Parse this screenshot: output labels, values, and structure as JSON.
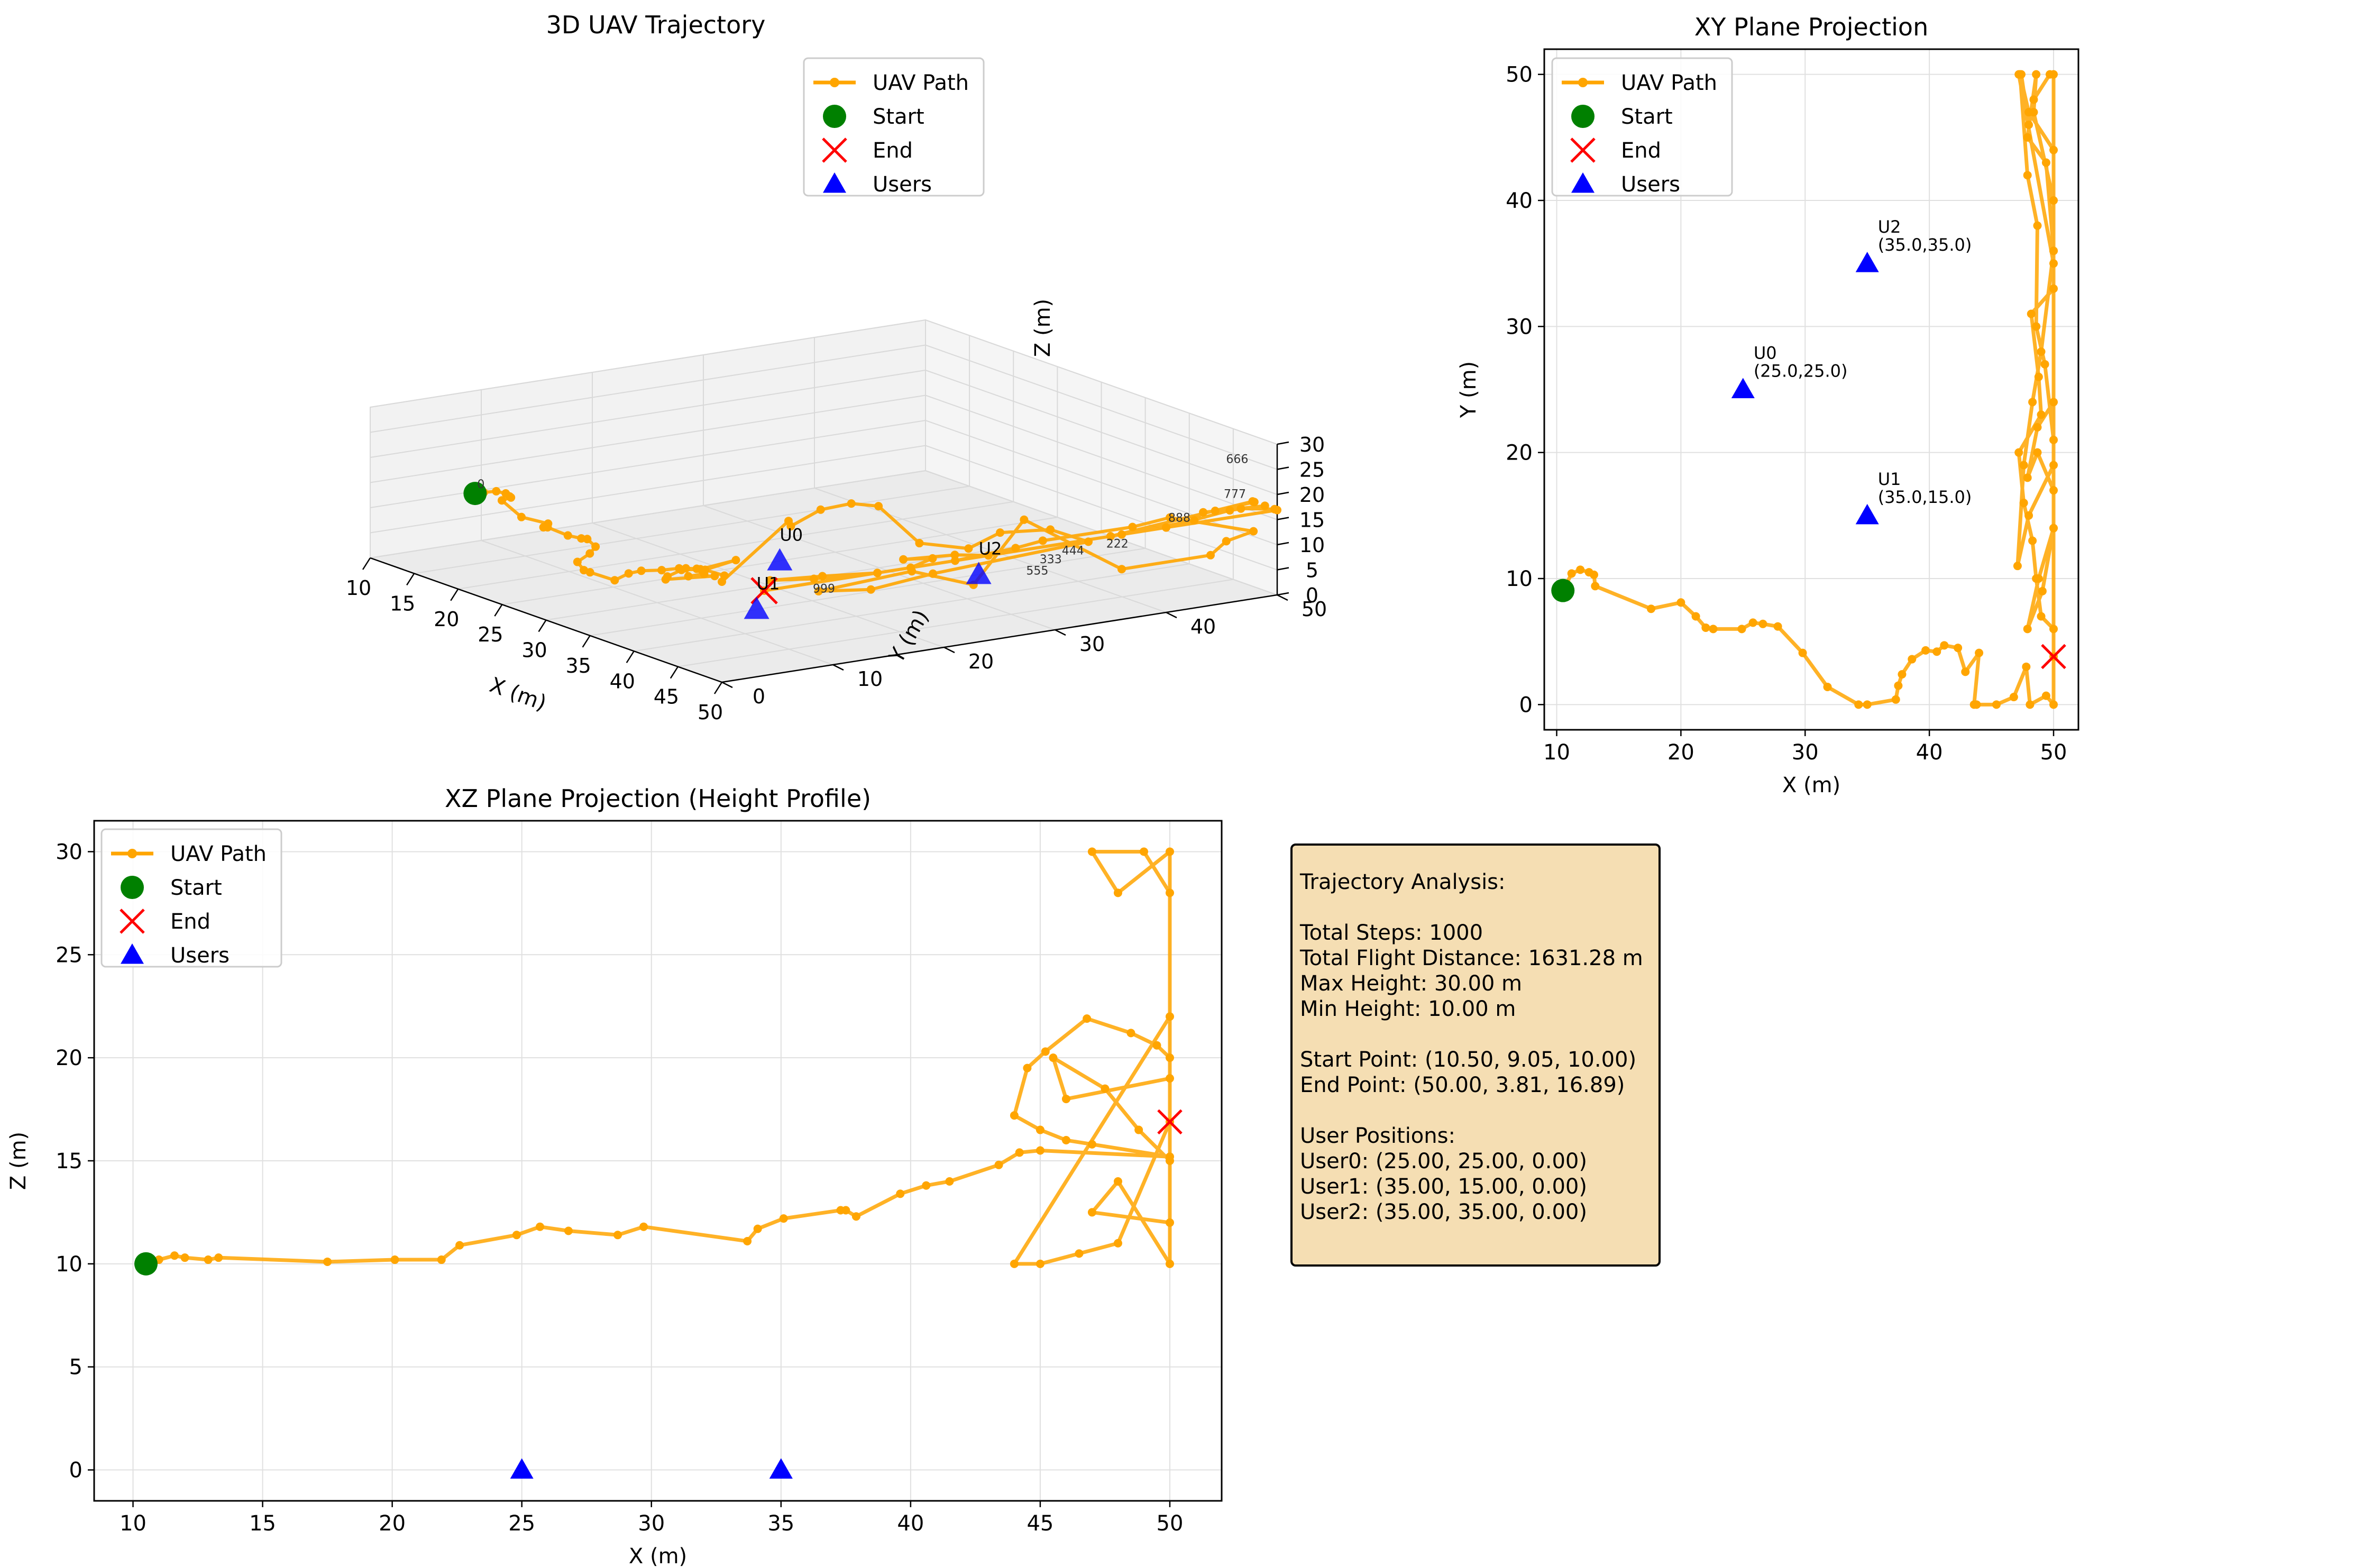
{
  "colors": {
    "path": "#ffa500",
    "start": "#008000",
    "end": "#ff0000",
    "users": "#0000ff"
  },
  "chart_data": [
    {
      "type": "line3d",
      "title": "3D UAV Trajectory",
      "xlabel": "X (m)",
      "ylabel": "Y (m)",
      "zlabel": "Z (m)",
      "xlim": [
        10,
        50
      ],
      "ylim": [
        0,
        50
      ],
      "zlim": [
        0,
        30
      ],
      "xticks": [
        10,
        15,
        20,
        25,
        30,
        35,
        40,
        45,
        50
      ],
      "yticks": [
        0,
        10,
        20,
        30,
        40,
        50
      ],
      "zticks": [
        0,
        5,
        10,
        15,
        20,
        25,
        30
      ],
      "legend": [
        "UAV Path",
        "Start",
        "End",
        "Users"
      ],
      "legend_position": "top-right",
      "user_labels": [
        "U0",
        "U1",
        "U2"
      ],
      "step_labels": [
        "0",
        "222",
        "333",
        "444",
        "555",
        "666",
        "777",
        "888",
        "999"
      ],
      "grid": true
    },
    {
      "type": "line",
      "title": "XY Plane Projection",
      "xlabel": "X (m)",
      "ylabel": "Y (m)",
      "xlim": [
        9,
        52
      ],
      "ylim": [
        -2,
        52
      ],
      "xticks": [
        10,
        20,
        30,
        40,
        50
      ],
      "yticks": [
        0,
        10,
        20,
        30,
        40,
        50
      ],
      "legend": [
        "UAV Path",
        "Start",
        "End",
        "Users"
      ],
      "legend_position": "top-left",
      "grid": true,
      "path": {
        "x": [
          10.5,
          10.8,
          11.2,
          11.9,
          12.6,
          13.0,
          13.1,
          17.6,
          20.0,
          21.2,
          22.0,
          22.6,
          24.9,
          25.8,
          26.6,
          27.8,
          29.8,
          31.8,
          34.3,
          35.0,
          37.3,
          37.5,
          37.8,
          38.6,
          39.7,
          40.6,
          41.2,
          42.3,
          42.9,
          44.0,
          43.6,
          43.8,
          45.4,
          46.8,
          47.8,
          48.1,
          49.4,
          50.0,
          50.0,
          49.0,
          48.6,
          48.3,
          47.6,
          47.2,
          49.0,
          48.8,
          48.2,
          50.0,
          50.0,
          48.0,
          47.1,
          47.6,
          48.3,
          49.0,
          50.0,
          50.0,
          48.0,
          47.3,
          47.9,
          48.7,
          48.6,
          49.3,
          50.0,
          50.0,
          48.8,
          47.9,
          49.1,
          50.0,
          50.0,
          48.4,
          48.6,
          47.9,
          49.4,
          50.0,
          50.0,
          48.7,
          47.9,
          48.7,
          50.0,
          50.0,
          47.2,
          47.4,
          48.0,
          48.4,
          49.7,
          50.0,
          50.0
        ],
        "y": [
          9.05,
          9.6,
          10.4,
          10.7,
          10.5,
          10.3,
          9.4,
          7.6,
          8.1,
          7.0,
          6.1,
          6.0,
          6.0,
          6.5,
          6.4,
          6.2,
          4.1,
          1.4,
          0.0,
          0.0,
          0.4,
          1.5,
          2.4,
          3.6,
          4.3,
          4.2,
          4.7,
          4.5,
          2.6,
          4.1,
          0.0,
          0.0,
          0.0,
          0.6,
          3.0,
          0.0,
          0.7,
          0.0,
          6.0,
          7.0,
          10.0,
          13.0,
          16.0,
          20.0,
          23.0,
          26.0,
          31.0,
          33.0,
          19.0,
          15.0,
          11.0,
          19.0,
          24.0,
          28.0,
          36.0,
          44.0,
          47.0,
          50.0,
          42.0,
          38.0,
          30.0,
          27.0,
          21.0,
          14.0,
          10.0,
          6.0,
          9.0,
          14.0,
          40.0,
          47.0,
          50.0,
          45.0,
          43.0,
          36.0,
          24.0,
          22.0,
          18.0,
          20.0,
          17.0,
          35.0,
          50.0,
          50.0,
          46.0,
          48.0,
          50.0,
          50.0,
          3.81
        ]
      },
      "start": {
        "x": 10.5,
        "y": 9.05
      },
      "end": {
        "x": 50.0,
        "y": 3.81
      },
      "users": [
        {
          "label": "U0",
          "coord": "(25.0,25.0)",
          "x": 25.0,
          "y": 25.0
        },
        {
          "label": "U1",
          "coord": "(35.0,15.0)",
          "x": 35.0,
          "y": 15.0
        },
        {
          "label": "U2",
          "coord": "(35.0,35.0)",
          "x": 35.0,
          "y": 35.0
        }
      ]
    },
    {
      "type": "line",
      "title": "XZ Plane Projection (Height Profile)",
      "xlabel": "X (m)",
      "ylabel": "Z (m)",
      "xlim": [
        8.5,
        52
      ],
      "ylim": [
        -1.5,
        31.5
      ],
      "xticks": [
        10,
        15,
        20,
        25,
        30,
        35,
        40,
        45,
        50
      ],
      "yticks": [
        0,
        5,
        10,
        15,
        20,
        25,
        30
      ],
      "legend": [
        "UAV Path",
        "Start",
        "End",
        "Users"
      ],
      "legend_position": "top-left",
      "grid": true,
      "path": {
        "x": [
          10.5,
          11.0,
          11.6,
          12.0,
          12.9,
          13.3,
          17.5,
          20.1,
          21.9,
          22.6,
          24.8,
          25.7,
          26.8,
          28.7,
          29.7,
          33.7,
          34.1,
          35.1,
          37.3,
          37.5,
          37.9,
          39.6,
          40.6,
          41.5,
          43.4,
          44.2,
          45.0,
          50.0,
          47.0,
          46.0,
          45.0,
          44.0,
          44.5,
          45.2,
          46.8,
          48.5,
          49.5,
          50.0,
          50.0,
          48.0,
          47.0,
          49.0,
          50.0,
          50.0,
          46.0,
          45.5,
          47.5,
          48.8,
          50.0,
          50.0,
          47.0,
          48.0,
          50.0,
          50.0,
          44.0,
          45.0,
          46.5,
          48.0,
          50.0
        ],
        "y": [
          10.0,
          10.2,
          10.4,
          10.3,
          10.2,
          10.3,
          10.1,
          10.2,
          10.2,
          10.9,
          11.4,
          11.8,
          11.6,
          11.4,
          11.8,
          11.1,
          11.7,
          12.2,
          12.6,
          12.6,
          12.3,
          13.4,
          13.8,
          14.0,
          14.8,
          15.4,
          15.5,
          15.2,
          15.8,
          16.0,
          16.5,
          17.2,
          19.5,
          20.3,
          21.9,
          21.2,
          20.6,
          20.0,
          30.0,
          28.0,
          30.0,
          30.0,
          28.0,
          19.0,
          18.0,
          20.0,
          18.5,
          16.5,
          15.0,
          12.0,
          12.5,
          14.0,
          10.0,
          22.0,
          10.0,
          10.0,
          10.5,
          11.0,
          16.89
        ]
      },
      "start": {
        "x": 10.5,
        "z": 10.0
      },
      "end": {
        "x": 50.0,
        "z": 16.89
      },
      "users": [
        {
          "x": 25.0,
          "z": 0.0
        },
        {
          "x": 35.0,
          "z": 0.0
        },
        {
          "x": 35.0,
          "z": 0.0
        }
      ]
    }
  ],
  "analysis": {
    "lines": [
      "Trajectory Analysis:",
      "",
      "Total Steps: 1000",
      "Total Flight Distance: 1631.28 m",
      "Max Height: 30.00 m",
      "Min Height: 10.00 m",
      "",
      "Start Point: (10.50, 9.05, 10.00)",
      "End Point: (50.00, 3.81, 16.89)",
      "",
      "User Positions:",
      "User0: (25.00, 25.00, 0.00)",
      "User1: (35.00, 15.00, 0.00)",
      "User2: (35.00, 35.00, 0.00)"
    ]
  }
}
